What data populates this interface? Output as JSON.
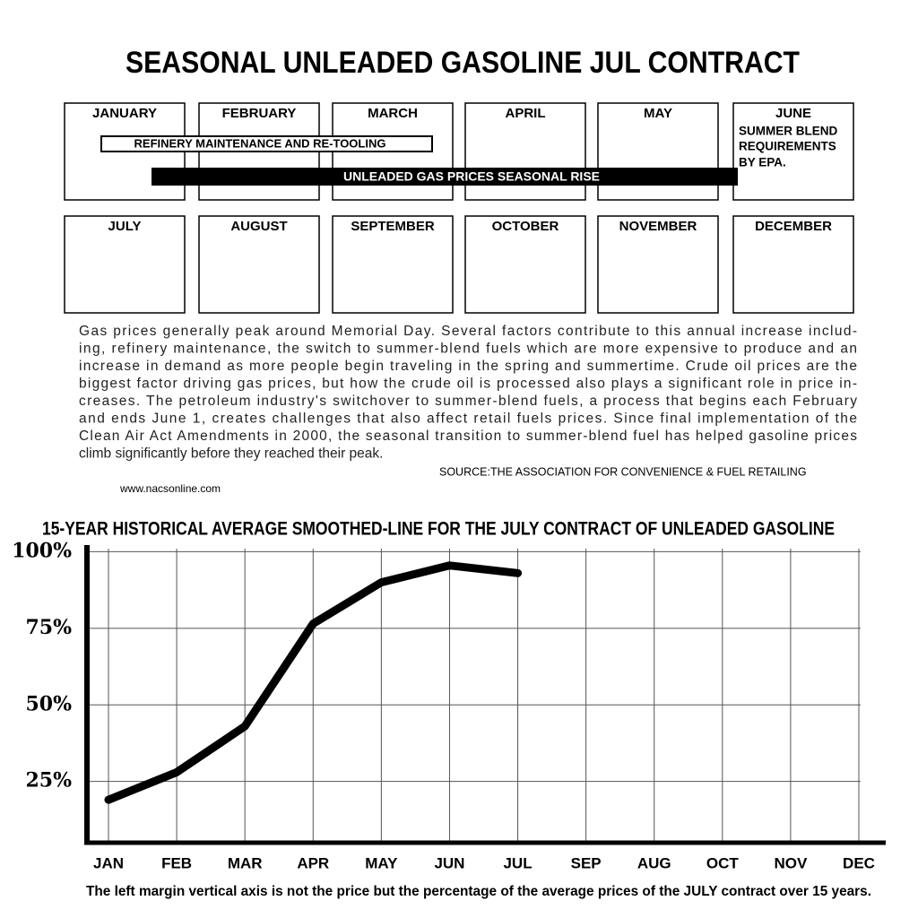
{
  "title": "SEASONAL UNLEADED GASOLINE JUL CONTRACT",
  "calendar": {
    "months": [
      "JANUARY",
      "FEBRUARY",
      "MARCH",
      "APRIL",
      "MAY",
      "JUNE",
      "JULY",
      "AUGUST",
      "SEPTEMBER",
      "OCTOBER",
      "NOVEMBER",
      "DECEMBER"
    ],
    "bars": [
      "REFINERY MAINTENANCE AND RE-TOOLING",
      "UNLEADED GAS PRICES SEASONAL RISE"
    ],
    "note": [
      "SUMMER BLEND",
      "REQUIREMENTS",
      "BY EPA."
    ]
  },
  "paragraph": {
    "lines": [
      "Gas prices generally peak around Memorial Day.  Several factors contribute to this annual increase includ-",
      "ing, refinery maintenance, the switch to summer-blend fuels which are more expensive to produce and an",
      "increase in demand as more people begin traveling in the spring and summertime. Crude oil prices are the",
      "biggest factor driving gas prices, but how the crude oil is processed also plays a significant role in price in-",
      "creases. The petroleum industry's switchover to summer-blend fuels, a process that begins each February",
      "and ends June 1, creates challenges that also affect retail fuels prices. Since final implementation of the",
      "Clean Air Act Amendments in 2000, the seasonal transition to summer-blend fuel has helped gasoline prices",
      "climb significantly before they reached their peak."
    ],
    "source": "SOURCE:THE ASSOCIATION FOR CONVENIENCE & FUEL RETAILING",
    "url": "www.nacsonline.com"
  },
  "chart_data": {
    "type": "line",
    "title": "15-YEAR HISTORICAL AVERAGE SMOOTHED-LINE FOR THE JULY CONTRACT OF UNLEADED GASOLINE",
    "footnote": "The left margin vertical axis is not the price but the percentage of the average prices of the JULY contract over 15 years.",
    "categories": [
      "JAN",
      "FEB",
      "MAR",
      "APR",
      "MAY",
      "JUN",
      "JUL",
      "SEP",
      "AUG",
      "OCT",
      "NOV",
      "DEC"
    ],
    "values": [
      19,
      28,
      43,
      76.5,
      90,
      95.5,
      93,
      null,
      null,
      null,
      null,
      null
    ],
    "color": "#000000",
    "ylim": [
      5,
      101
    ],
    "yticks": [
      {
        "value": 25,
        "label": "25%"
      },
      {
        "value": 50,
        "label": "50%"
      },
      {
        "value": 75,
        "label": "75%"
      },
      {
        "value": 100,
        "label": "100%"
      }
    ],
    "grid": true
  }
}
